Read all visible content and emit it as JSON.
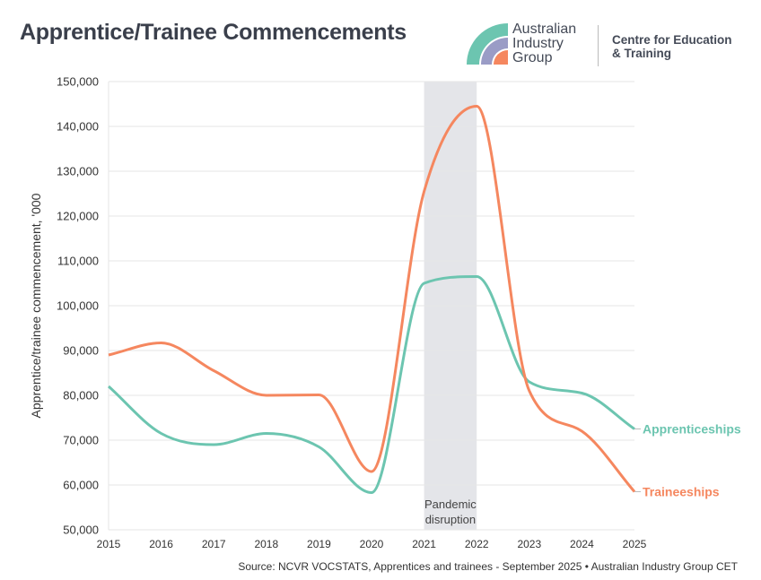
{
  "header": {
    "title": "Apprentice/Trainee Commencements"
  },
  "logo": {
    "org_lines": [
      "Australian",
      "Industry",
      "Group"
    ],
    "unit_lines": [
      "Centre for Education",
      "& Training"
    ]
  },
  "source": "Source: NCVR VOCSTATS, Apprentices and trainees - September 2025 • Australian Industry Group CET",
  "chart_data": {
    "type": "line",
    "title": "Apprentice/Trainee Commencements",
    "xlabel": "",
    "ylabel": "Apprentice/trainee commencement, '000",
    "xlim": [
      2015,
      2025
    ],
    "ylim": [
      50000,
      150000
    ],
    "x_ticks": [
      "2015",
      "2016",
      "2017",
      "2018",
      "2019",
      "2020",
      "2021",
      "2022",
      "2023",
      "2024",
      "2025"
    ],
    "y_ticks": [
      "50,000",
      "60,000",
      "70,000",
      "80,000",
      "90,000",
      "100,000",
      "110,000",
      "120,000",
      "130,000",
      "140,000",
      "150,000"
    ],
    "grid": true,
    "legend": "end-of-line labels",
    "x": [
      2015,
      2016,
      2017,
      2018,
      2019,
      2020,
      2021,
      2022,
      2023,
      2024,
      2025
    ],
    "series": [
      {
        "name": "Apprenticeships",
        "color": "#6cc5b0",
        "values": [
          82000,
          71500,
          69000,
          71500,
          68500,
          58300,
          105000,
          106500,
          83000,
          80500,
          72500
        ]
      },
      {
        "name": "Traineeships",
        "color": "#f5875f",
        "values": [
          89000,
          91700,
          85500,
          80000,
          80100,
          63000,
          125500,
          144500,
          81000,
          72000,
          58500
        ]
      }
    ],
    "annotations": [
      {
        "label": "Pandemic disruption",
        "label_lines": [
          "Pandemic",
          "disruption"
        ],
        "x_range": [
          2021,
          2022
        ],
        "color": "#e4e5e9"
      }
    ]
  }
}
